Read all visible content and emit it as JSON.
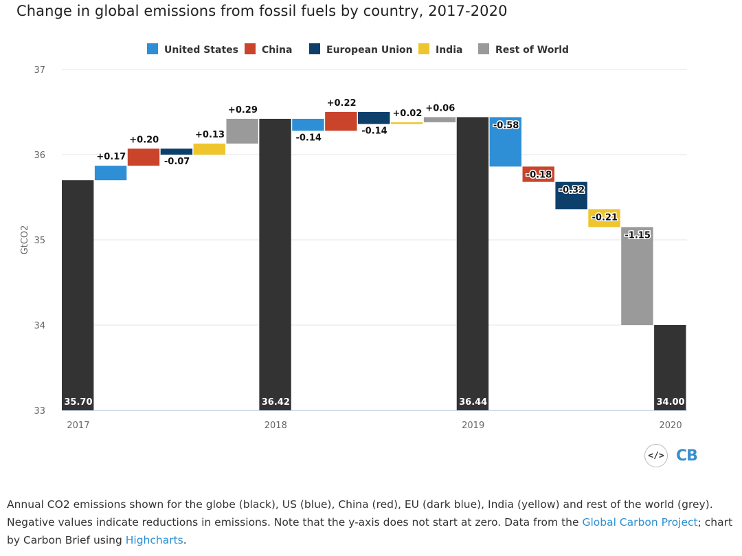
{
  "chart_data": {
    "type": "waterfall",
    "title": "Change in global emissions from fossil fuels by country, 2017-2020",
    "ylabel": "GtCO2",
    "xlabel": "",
    "ylim": [
      33,
      37
    ],
    "yticks": [
      33,
      34,
      35,
      36,
      37
    ],
    "legend": {
      "position": "top",
      "entries": [
        {
          "name": "United States",
          "color": "#2e8fd6"
        },
        {
          "name": "China",
          "color": "#c9442a"
        },
        {
          "name": "European Union",
          "color": "#0d3f6b"
        },
        {
          "name": "India",
          "color": "#efc52d"
        },
        {
          "name": "Rest of World",
          "color": "#9a9a9a"
        }
      ]
    },
    "total_color": "#333333",
    "x_labels": [
      "2017",
      "",
      "",
      "",
      "",
      "",
      "2018",
      "",
      "",
      "",
      "",
      "",
      "2019",
      "",
      "",
      "",
      "",
      "",
      "2020"
    ],
    "points": [
      {
        "kind": "total",
        "label": "35.70",
        "value": 35.7
      },
      {
        "kind": "change",
        "series": "United States",
        "value": 0.17,
        "label": "+0.17"
      },
      {
        "kind": "change",
        "series": "China",
        "value": 0.2,
        "label": "+0.20"
      },
      {
        "kind": "change",
        "series": "European Union",
        "value": -0.07,
        "label": "-0.07"
      },
      {
        "kind": "change",
        "series": "India",
        "value": 0.13,
        "label": "+0.13"
      },
      {
        "kind": "change",
        "series": "Rest of World",
        "value": 0.29,
        "label": "+0.29"
      },
      {
        "kind": "total",
        "label": "36.42",
        "value": 36.42
      },
      {
        "kind": "change",
        "series": "United States",
        "value": -0.14,
        "label": "-0.14"
      },
      {
        "kind": "change",
        "series": "China",
        "value": 0.22,
        "label": "+0.22"
      },
      {
        "kind": "change",
        "series": "European Union",
        "value": -0.14,
        "label": "-0.14"
      },
      {
        "kind": "change",
        "series": "India",
        "value": 0.02,
        "label": "+0.02"
      },
      {
        "kind": "change",
        "series": "Rest of World",
        "value": 0.06,
        "label": "+0.06"
      },
      {
        "kind": "total",
        "label": "36.44",
        "value": 36.44
      },
      {
        "kind": "change",
        "series": "United States",
        "value": -0.58,
        "label": "-0.58"
      },
      {
        "kind": "change",
        "series": "China",
        "value": -0.18,
        "label": "-0.18"
      },
      {
        "kind": "change",
        "series": "European Union",
        "value": -0.32,
        "label": "-0.32"
      },
      {
        "kind": "change",
        "series": "India",
        "value": -0.21,
        "label": "-0.21"
      },
      {
        "kind": "change",
        "series": "Rest of World",
        "value": -1.15,
        "label": "-1.15"
      },
      {
        "kind": "total",
        "label": "34.00",
        "value": 34.0
      }
    ]
  },
  "caption": {
    "text_before": "Annual CO2 emissions shown for the globe (black), US (blue), China (red), EU (dark blue), India (yellow) and rest of the world (grey). Negative values indicate reductions in emissions. Note that the y-axis does not start at zero. Data from the ",
    "link1": "Global Carbon Project",
    "text_middle": "; chart by Carbon Brief using ",
    "link2": "Highcharts",
    "text_after": "."
  },
  "logo": {
    "code_icon": "</>",
    "brand": "CB"
  }
}
